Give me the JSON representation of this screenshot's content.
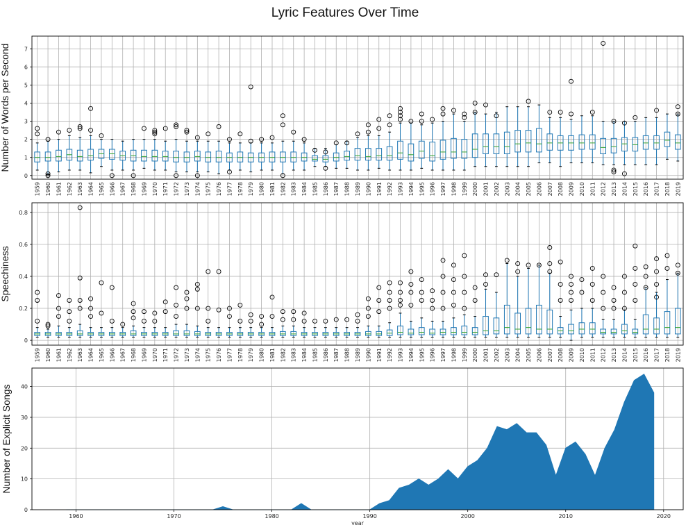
{
  "figure": {
    "title": "Lyric Features Over Time"
  },
  "chart_data": [
    {
      "type": "box",
      "ylabel": "Number of Words per Second",
      "ylim": [
        -0.2,
        7.7
      ],
      "yticks": [
        0,
        1,
        2,
        3,
        4,
        5,
        6,
        7
      ],
      "grid": true,
      "box_color": "#1f77b4",
      "median_color": "#2ca02c",
      "categories": [
        "1959",
        "1960",
        "1961",
        "1962",
        "1963",
        "1964",
        "1965",
        "1966",
        "1967",
        "1968",
        "1969",
        "1970",
        "1971",
        "1972",
        "1973",
        "1974",
        "1975",
        "1976",
        "1977",
        "1978",
        "1979",
        "1980",
        "1981",
        "1982",
        "1983",
        "1984",
        "1985",
        "1986",
        "1987",
        "1988",
        "1989",
        "1990",
        "1991",
        "1992",
        "1993",
        "1994",
        "1995",
        "1996",
        "1997",
        "1998",
        "1999",
        "2000",
        "2001",
        "2002",
        "2003",
        "2004",
        "2005",
        "2006",
        "2007",
        "2008",
        "2009",
        "2010",
        "2011",
        "2012",
        "2013",
        "2014",
        "2015",
        "2016",
        "2017",
        "2018",
        "2019"
      ],
      "q1": [
        0.75,
        0.8,
        0.8,
        0.85,
        0.8,
        0.85,
        0.95,
        0.9,
        0.85,
        0.8,
        0.8,
        0.8,
        0.8,
        0.75,
        0.75,
        0.8,
        0.75,
        0.75,
        0.75,
        0.75,
        0.75,
        0.75,
        0.75,
        0.75,
        0.75,
        0.8,
        0.8,
        0.75,
        0.8,
        0.85,
        0.85,
        0.85,
        0.85,
        0.85,
        0.9,
        0.8,
        0.95,
        0.8,
        0.9,
        0.95,
        0.95,
        1.0,
        1.2,
        1.2,
        1.2,
        1.3,
        1.3,
        1.3,
        1.4,
        1.4,
        1.4,
        1.45,
        1.45,
        1.2,
        1.25,
        1.35,
        1.35,
        1.45,
        1.45,
        1.6,
        1.45
      ],
      "median": [
        1.0,
        1.0,
        1.05,
        1.15,
        1.05,
        1.1,
        1.2,
        1.2,
        1.1,
        1.1,
        1.05,
        1.05,
        1.05,
        1.0,
        1.0,
        1.05,
        1.0,
        1.0,
        1.0,
        1.0,
        1.0,
        1.0,
        1.0,
        1.0,
        1.0,
        1.0,
        0.9,
        0.9,
        1.0,
        1.05,
        1.1,
        1.05,
        1.1,
        1.1,
        1.25,
        1.15,
        1.35,
        1.1,
        1.3,
        1.3,
        1.3,
        1.45,
        1.6,
        1.6,
        1.6,
        1.75,
        1.8,
        1.75,
        1.8,
        1.8,
        1.8,
        1.8,
        1.8,
        1.55,
        1.6,
        1.75,
        1.7,
        1.8,
        1.8,
        1.95,
        1.8
      ],
      "q3": [
        1.3,
        1.3,
        1.4,
        1.45,
        1.4,
        1.45,
        1.45,
        1.45,
        1.35,
        1.4,
        1.4,
        1.4,
        1.35,
        1.35,
        1.3,
        1.35,
        1.3,
        1.35,
        1.25,
        1.3,
        1.25,
        1.25,
        1.3,
        1.3,
        1.3,
        1.25,
        1.1,
        1.1,
        1.25,
        1.35,
        1.5,
        1.5,
        1.5,
        1.6,
        1.9,
        1.75,
        1.9,
        1.85,
        1.95,
        2.05,
        2.0,
        2.3,
        2.3,
        2.3,
        2.4,
        2.5,
        2.5,
        2.6,
        2.3,
        2.2,
        2.2,
        2.25,
        2.25,
        2.05,
        2.05,
        2.1,
        2.1,
        2.2,
        2.2,
        2.4,
        2.25
      ],
      "whisker_low": [
        0.3,
        0.05,
        0.2,
        0.3,
        0.3,
        0.15,
        0.5,
        0.3,
        0.3,
        0.3,
        0.4,
        0.3,
        0.3,
        0.2,
        0.2,
        0.2,
        0.2,
        0.1,
        0.3,
        0.3,
        0.2,
        0.3,
        0.3,
        0.1,
        0.3,
        0.3,
        0.5,
        0.5,
        0.4,
        0.4,
        0.3,
        0.3,
        0.4,
        0.3,
        0.3,
        0.3,
        0.4,
        0.3,
        0.3,
        0.3,
        0.3,
        0.5,
        0.5,
        0.5,
        0.5,
        0.5,
        0.5,
        0.7,
        0.7,
        0.5,
        0.7,
        0.7,
        0.7,
        0.6,
        0.6,
        0.6,
        0.6,
        0.6,
        0.6,
        0.9,
        0.8
      ],
      "whisker_high": [
        1.8,
        1.9,
        2.0,
        2.2,
        2.1,
        2.2,
        2.0,
        2.0,
        1.9,
        2.0,
        2.0,
        2.0,
        1.9,
        2.0,
        1.9,
        1.9,
        1.9,
        1.9,
        1.8,
        1.8,
        1.8,
        1.8,
        1.8,
        1.9,
        1.9,
        1.8,
        1.5,
        1.5,
        1.7,
        1.9,
        2.1,
        2.2,
        2.2,
        2.4,
        2.9,
        2.9,
        2.8,
        2.9,
        3.0,
        3.4,
        3.0,
        3.5,
        3.4,
        3.5,
        3.8,
        3.8,
        3.8,
        3.9,
        3.2,
        3.2,
        3.1,
        3.3,
        3.3,
        3.0,
        3.0,
        3.0,
        3.0,
        3.2,
        3.2,
        3.4,
        3.4
      ],
      "outliers": [
        [
          2.3,
          2.6
        ],
        [
          2.0,
          0.0,
          0.1
        ],
        [
          2.4
        ],
        [
          2.5
        ],
        [
          2.6,
          2.7
        ],
        [
          3.7,
          2.5
        ],
        [
          2.2
        ],
        [
          0.0
        ],
        [],
        [
          0.0
        ],
        [
          2.6
        ],
        [
          2.3,
          2.4,
          2.5
        ],
        [
          2.6
        ],
        [
          2.7,
          2.8,
          0.0
        ],
        [
          2.5,
          2.4
        ],
        [
          2.1,
          0.0
        ],
        [
          2.3
        ],
        [
          2.7
        ],
        [
          0.2,
          2.0
        ],
        [
          2.3
        ],
        [
          4.9,
          1.9
        ],
        [
          2.0
        ],
        [
          2.1
        ],
        [
          3.3,
          2.8,
          0.0
        ],
        [
          2.4
        ],
        [
          2.0
        ],
        [
          1.4
        ],
        [
          0.4,
          1.3
        ],
        [
          1.8
        ],
        [
          1.8
        ],
        [
          2.3
        ],
        [
          2.8,
          2.4
        ],
        [
          3.1,
          2.6
        ],
        [
          3.3,
          2.8
        ],
        [
          3.7,
          3.5,
          3.3,
          3.1
        ],
        [
          3.0
        ],
        [
          3.4,
          3.0
        ],
        [
          3.1
        ],
        [
          3.7,
          3.4
        ],
        [
          3.6
        ],
        [
          3.2,
          3.4
        ],
        [
          4.0,
          3.5
        ],
        [
          3.9
        ],
        [
          3.3
        ],
        [],
        [],
        [
          4.1
        ],
        [],
        [
          3.5
        ],
        [
          3.5
        ],
        [
          5.2,
          3.4
        ],
        [],
        [
          3.5
        ],
        [
          7.3
        ],
        [
          3.0,
          0.3,
          0.2
        ],
        [
          2.9,
          0.1
        ],
        [
          3.2
        ],
        [],
        [
          3.6
        ],
        [],
        [
          3.8,
          3.4
        ]
      ]
    },
    {
      "type": "box",
      "ylabel": "Speechiness",
      "ylim": [
        -0.03,
        0.86
      ],
      "yticks": [
        0.0,
        0.2,
        0.4,
        0.6,
        0.8
      ],
      "grid": true,
      "box_color": "#1f77b4",
      "median_color": "#2ca02c",
      "categories": [
        "1959",
        "1960",
        "1961",
        "1962",
        "1963",
        "1964",
        "1965",
        "1966",
        "1967",
        "1968",
        "1969",
        "1970",
        "1971",
        "1972",
        "1973",
        "1974",
        "1975",
        "1976",
        "1977",
        "1978",
        "1979",
        "1980",
        "1981",
        "1982",
        "1983",
        "1984",
        "1985",
        "1986",
        "1987",
        "1988",
        "1989",
        "1990",
        "1991",
        "1992",
        "1993",
        "1994",
        "1995",
        "1996",
        "1997",
        "1998",
        "1999",
        "2000",
        "2001",
        "2002",
        "2003",
        "2004",
        "2005",
        "2006",
        "2007",
        "2008",
        "2009",
        "2010",
        "2011",
        "2012",
        "2013",
        "2014",
        "2015",
        "2016",
        "2017",
        "2018",
        "2019"
      ],
      "q1": [
        0.03,
        0.03,
        0.03,
        0.03,
        0.03,
        0.03,
        0.03,
        0.03,
        0.03,
        0.03,
        0.03,
        0.03,
        0.03,
        0.03,
        0.03,
        0.03,
        0.03,
        0.03,
        0.03,
        0.03,
        0.03,
        0.03,
        0.03,
        0.03,
        0.03,
        0.03,
        0.03,
        0.03,
        0.03,
        0.03,
        0.03,
        0.03,
        0.03,
        0.03,
        0.035,
        0.035,
        0.035,
        0.035,
        0.035,
        0.035,
        0.035,
        0.035,
        0.035,
        0.04,
        0.04,
        0.04,
        0.04,
        0.04,
        0.04,
        0.04,
        0.04,
        0.04,
        0.04,
        0.04,
        0.04,
        0.04,
        0.04,
        0.04,
        0.04,
        0.04,
        0.04
      ],
      "median": [
        0.04,
        0.04,
        0.04,
        0.04,
        0.04,
        0.04,
        0.04,
        0.04,
        0.04,
        0.04,
        0.04,
        0.04,
        0.04,
        0.04,
        0.04,
        0.04,
        0.04,
        0.04,
        0.04,
        0.04,
        0.04,
        0.04,
        0.04,
        0.04,
        0.04,
        0.04,
        0.04,
        0.04,
        0.04,
        0.04,
        0.04,
        0.04,
        0.04,
        0.045,
        0.05,
        0.045,
        0.05,
        0.045,
        0.05,
        0.05,
        0.05,
        0.05,
        0.06,
        0.06,
        0.08,
        0.07,
        0.08,
        0.07,
        0.07,
        0.06,
        0.06,
        0.07,
        0.07,
        0.05,
        0.05,
        0.06,
        0.05,
        0.07,
        0.07,
        0.08,
        0.08
      ],
      "q3": [
        0.05,
        0.05,
        0.05,
        0.05,
        0.06,
        0.05,
        0.05,
        0.05,
        0.05,
        0.06,
        0.05,
        0.05,
        0.05,
        0.06,
        0.06,
        0.055,
        0.05,
        0.05,
        0.05,
        0.05,
        0.05,
        0.05,
        0.05,
        0.055,
        0.055,
        0.05,
        0.05,
        0.05,
        0.05,
        0.05,
        0.05,
        0.055,
        0.055,
        0.065,
        0.09,
        0.07,
        0.08,
        0.07,
        0.07,
        0.08,
        0.09,
        0.08,
        0.15,
        0.14,
        0.22,
        0.17,
        0.2,
        0.22,
        0.19,
        0.08,
        0.1,
        0.11,
        0.11,
        0.07,
        0.07,
        0.1,
        0.07,
        0.16,
        0.14,
        0.18,
        0.2
      ],
      "whisker_low": [
        0.02,
        0.02,
        0.02,
        0.02,
        0.02,
        0.02,
        0.02,
        0.02,
        0.02,
        0.02,
        0.02,
        0.02,
        0.02,
        0.02,
        0.02,
        0.02,
        0.02,
        0.02,
        0.02,
        0.02,
        0.02,
        0.02,
        0.02,
        0.02,
        0.02,
        0.02,
        0.02,
        0.02,
        0.02,
        0.02,
        0.02,
        0.02,
        0.02,
        0.02,
        0.02,
        0.02,
        0.02,
        0.02,
        0.02,
        0.02,
        0.02,
        0.02,
        0.02,
        0.02,
        0.02,
        0.02,
        0.02,
        0.02,
        0.02,
        0.02,
        0.0,
        0.02,
        0.02,
        0.02,
        0.02,
        0.02,
        0.02,
        0.02,
        0.02,
        0.02,
        0.02
      ],
      "whisker_high": [
        0.08,
        0.07,
        0.09,
        0.08,
        0.1,
        0.08,
        0.08,
        0.08,
        0.08,
        0.09,
        0.08,
        0.08,
        0.08,
        0.1,
        0.1,
        0.09,
        0.08,
        0.08,
        0.08,
        0.08,
        0.08,
        0.08,
        0.08,
        0.09,
        0.09,
        0.08,
        0.08,
        0.08,
        0.08,
        0.08,
        0.08,
        0.09,
        0.09,
        0.11,
        0.17,
        0.12,
        0.14,
        0.12,
        0.12,
        0.14,
        0.16,
        0.15,
        0.32,
        0.3,
        0.48,
        0.4,
        0.45,
        0.47,
        0.42,
        0.15,
        0.19,
        0.2,
        0.2,
        0.13,
        0.13,
        0.19,
        0.13,
        0.33,
        0.3,
        0.38,
        0.42
      ],
      "outliers": [
        [
          0.3,
          0.25,
          0.12
        ],
        [
          0.1,
          0.09
        ],
        [
          0.28,
          0.2,
          0.15
        ],
        [
          0.25,
          0.18,
          0.12
        ],
        [
          0.83,
          0.39,
          0.25,
          0.2
        ],
        [
          0.26,
          0.2,
          0.15
        ],
        [
          0.36,
          0.17
        ],
        [
          0.33,
          0.12
        ],
        [
          0.1
        ],
        [
          0.23,
          0.18,
          0.14
        ],
        [
          0.18,
          0.12
        ],
        [
          0.17,
          0.12
        ],
        [
          0.24,
          0.18
        ],
        [
          0.33,
          0.22,
          0.15
        ],
        [
          0.3,
          0.26,
          0.2
        ],
        [
          0.35,
          0.32,
          0.2
        ],
        [
          0.43,
          0.2,
          0.12
        ],
        [
          0.43,
          0.19
        ],
        [
          0.2,
          0.15
        ],
        [
          0.22,
          0.12
        ],
        [
          0.16,
          0.12
        ],
        [
          0.15,
          0.1
        ],
        [
          0.27,
          0.15
        ],
        [
          0.18,
          0.13
        ],
        [
          0.18,
          0.13
        ],
        [
          0.17,
          0.12
        ],
        [
          0.12
        ],
        [
          0.12
        ],
        [
          0.13
        ],
        [
          0.13
        ],
        [
          0.16,
          0.12
        ],
        [
          0.26,
          0.2,
          0.15
        ],
        [
          0.33,
          0.25,
          0.18
        ],
        [
          0.36,
          0.3,
          0.25,
          0.2
        ],
        [
          0.36,
          0.3,
          0.25,
          0.22
        ],
        [
          0.43,
          0.35,
          0.3,
          0.22
        ],
        [
          0.38,
          0.3,
          0.25
        ],
        [
          0.31,
          0.25,
          0.2
        ],
        [
          0.5,
          0.4,
          0.3,
          0.2
        ],
        [
          0.47,
          0.38,
          0.3,
          0.22
        ],
        [
          0.53,
          0.4,
          0.3,
          0.2
        ],
        [
          0.33,
          0.25
        ],
        [
          0.41,
          0.35
        ],
        [
          0.41
        ],
        [
          0.5
        ],
        [
          0.48,
          0.43
        ],
        [
          0.47
        ],
        [
          0.47
        ],
        [
          0.58,
          0.48,
          0.43
        ],
        [
          0.49,
          0.35,
          0.25
        ],
        [
          0.4,
          0.35,
          0.3,
          0.25
        ],
        [
          0.38,
          0.3
        ],
        [
          0.45,
          0.35,
          0.25
        ],
        [
          0.4,
          0.3,
          0.2
        ],
        [
          0.33,
          0.25,
          0.2
        ],
        [
          0.4,
          0.3,
          0.2
        ],
        [
          0.59,
          0.45,
          0.35,
          0.25
        ],
        [
          0.46,
          0.4,
          0.33
        ],
        [
          0.51,
          0.43,
          0.35,
          0.27
        ],
        [
          0.53,
          0.45
        ],
        [
          0.47,
          0.42
        ]
      ]
    },
    {
      "type": "area",
      "ylabel": "Number of Explicit Songs",
      "xlabel": "year",
      "xlim": [
        1955.5,
        2022
      ],
      "ylim": [
        0,
        46
      ],
      "xticks": [
        1960,
        1970,
        1980,
        1990,
        2000,
        2010,
        2020
      ],
      "yticks": [
        0,
        10,
        20,
        30,
        40
      ],
      "grid": true,
      "fill_color": "#1f77b4",
      "x": [
        1959,
        1960,
        1961,
        1962,
        1963,
        1964,
        1965,
        1966,
        1967,
        1968,
        1969,
        1970,
        1971,
        1972,
        1973,
        1974,
        1975,
        1976,
        1977,
        1978,
        1979,
        1980,
        1981,
        1982,
        1983,
        1984,
        1985,
        1986,
        1987,
        1988,
        1989,
        1990,
        1991,
        1992,
        1993,
        1994,
        1995,
        1996,
        1997,
        1998,
        1999,
        2000,
        2001,
        2002,
        2003,
        2004,
        2005,
        2006,
        2007,
        2008,
        2009,
        2010,
        2011,
        2012,
        2013,
        2014,
        2015,
        2016,
        2017,
        2018,
        2019
      ],
      "y": [
        0,
        0,
        0,
        0,
        0,
        0,
        0,
        0,
        0,
        0,
        0,
        0,
        0,
        0,
        0,
        0,
        1,
        0,
        0,
        0,
        0,
        0,
        0,
        0,
        2,
        0,
        0,
        0,
        0,
        0,
        0,
        0,
        2,
        3,
        7,
        8,
        10,
        8,
        10,
        13,
        10,
        14,
        16,
        20,
        27,
        26,
        28,
        25,
        25,
        21,
        11,
        20,
        22,
        18,
        11,
        20,
        26,
        35,
        42,
        44,
        38
      ]
    }
  ]
}
